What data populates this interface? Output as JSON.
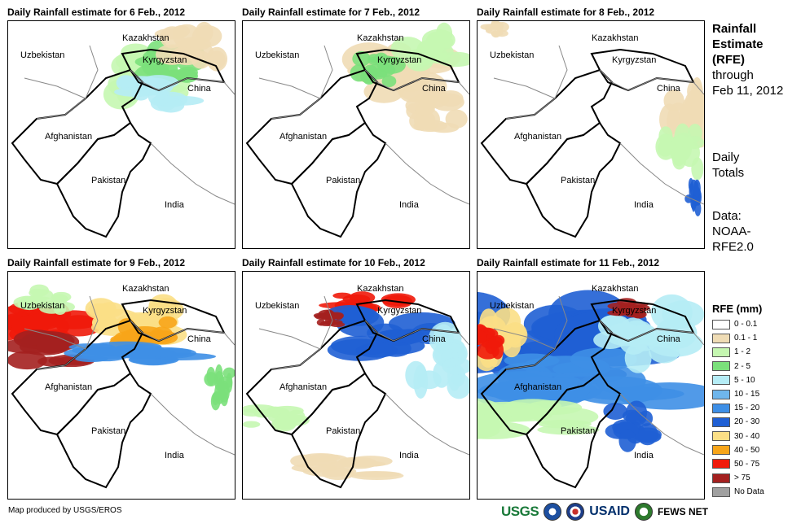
{
  "panels": [
    {
      "title": "Daily Rainfall estimate for 6 Feb., 2012"
    },
    {
      "title": "Daily Rainfall estimate for 7 Feb., 2012"
    },
    {
      "title": "Daily Rainfall estimate for 8 Feb., 2012"
    },
    {
      "title": "Daily Rainfall estimate for 9 Feb., 2012"
    },
    {
      "title": "Daily Rainfall estimate for 10 Feb., 2012"
    },
    {
      "title": "Daily Rainfall estimate for 11 Feb., 2012"
    }
  ],
  "map_labels": {
    "kazakhstan": "Kazakhstan",
    "uzbekistan": "Uzbekistan",
    "kyrgyzstan": "Kyrgyzstan",
    "china": "China",
    "afghanistan": "Afghanistan",
    "pakistan": "Pakistan",
    "india": "India"
  },
  "side": {
    "title_lines": [
      "Rainfall",
      "Estimate",
      "(RFE)"
    ],
    "through": "through",
    "date": "Feb 11, 2012",
    "daily": "Daily",
    "totals": "Totals",
    "data_lines": [
      "Data:",
      "NOAA-",
      "RFE2.0"
    ]
  },
  "legend": {
    "title": "RFE (mm)",
    "items": [
      {
        "label": "0 - 0.1",
        "color": "#ffffff"
      },
      {
        "label": "0.1 - 1",
        "color": "#efdcb5"
      },
      {
        "label": "1 - 2",
        "color": "#c5f7b1"
      },
      {
        "label": "2 - 5",
        "color": "#7be07b"
      },
      {
        "label": "5 - 10",
        "color": "#b5ecf5"
      },
      {
        "label": "10 - 15",
        "color": "#6fb6ec"
      },
      {
        "label": "15 - 20",
        "color": "#3e8fe6"
      },
      {
        "label": "20 - 30",
        "color": "#1f5fd4"
      },
      {
        "label": "30 - 40",
        "color": "#fbdf86"
      },
      {
        "label": "40 - 50",
        "color": "#f7a51a"
      },
      {
        "label": "50 - 75",
        "color": "#f01a0a"
      },
      {
        "label": "> 75",
        "color": "#a4201f"
      },
      {
        "label": "No Data",
        "color": "#a0a0a0"
      }
    ]
  },
  "credit": "Map produced by USGS/EROS",
  "logos": {
    "usgs": "USGS",
    "usaid": "USAID",
    "fews": "FEWS NET"
  }
}
